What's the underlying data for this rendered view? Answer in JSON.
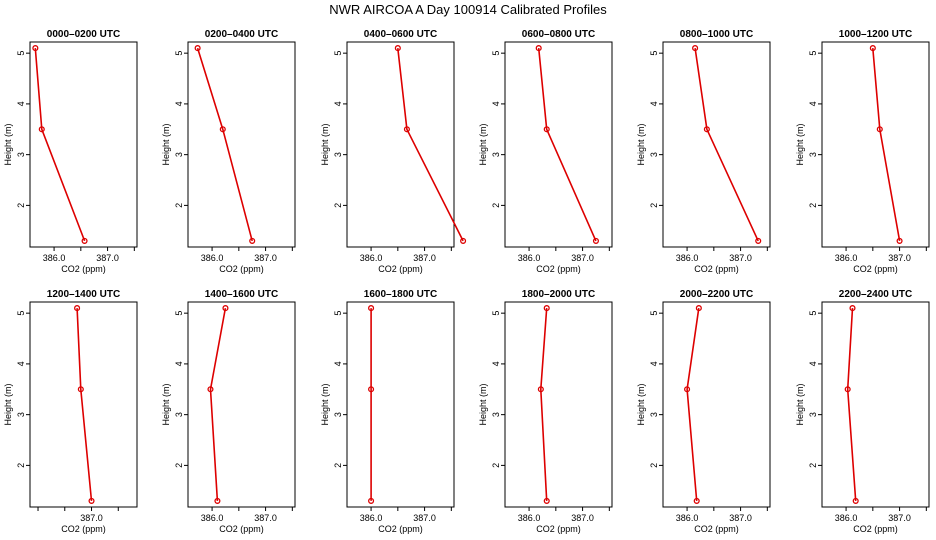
{
  "figure": {
    "title": "NWR AIRCOA A  Day 100914  Calibrated Profiles"
  },
  "colors": {
    "series": "#dd0000",
    "axes": "#000000",
    "background": "#ffffff"
  },
  "chart_data": [
    {
      "type": "line",
      "title": "0000–0200 UTC",
      "xlabel": "CO2 (ppm)",
      "ylabel": "Height (m)",
      "xticks": [
        "386.0",
        "387.0"
      ],
      "yticks": [
        "2",
        "3",
        "4",
        "5"
      ],
      "xlim": [
        385.55,
        387.55
      ],
      "ylim": [
        1.18,
        5.22
      ],
      "series": [
        {
          "x": [
            385.65,
            385.77,
            386.57
          ],
          "y": [
            5.1,
            3.5,
            1.3
          ]
        }
      ]
    },
    {
      "type": "line",
      "title": "0200–0400 UTC",
      "xlabel": "CO2 (ppm)",
      "ylabel": "Height (m)",
      "xticks": [
        "386.0",
        "387.0"
      ],
      "yticks": [
        "2",
        "3",
        "4",
        "5"
      ],
      "xlim": [
        385.55,
        387.55
      ],
      "ylim": [
        1.18,
        5.22
      ],
      "series": [
        {
          "x": [
            385.73,
            386.2,
            386.75
          ],
          "y": [
            5.1,
            3.5,
            1.3
          ]
        }
      ]
    },
    {
      "type": "line",
      "title": "0400–0600 UTC",
      "xlabel": "CO2 (ppm)",
      "ylabel": "Height (m)",
      "xticks": [
        "386.0",
        "387.0"
      ],
      "yticks": [
        "2",
        "3",
        "4",
        "5"
      ],
      "xlim": [
        385.55,
        387.55
      ],
      "ylim": [
        1.18,
        5.22
      ],
      "series": [
        {
          "x": [
            386.5,
            386.67,
            387.72
          ],
          "y": [
            5.1,
            3.5,
            1.3
          ]
        }
      ]
    },
    {
      "type": "line",
      "title": "0600–0800 UTC",
      "xlabel": "CO2 (ppm)",
      "ylabel": "Height (m)",
      "xticks": [
        "386.0",
        "387.0"
      ],
      "yticks": [
        "2",
        "3",
        "4",
        "5"
      ],
      "xlim": [
        385.55,
        387.55
      ],
      "ylim": [
        1.18,
        5.22
      ],
      "series": [
        {
          "x": [
            386.18,
            386.33,
            387.25
          ],
          "y": [
            5.1,
            3.5,
            1.3
          ]
        }
      ]
    },
    {
      "type": "line",
      "title": "0800–1000 UTC",
      "xlabel": "CO2 (ppm)",
      "ylabel": "Height (m)",
      "xticks": [
        "386.0",
        "387.0"
      ],
      "yticks": [
        "2",
        "3",
        "4",
        "5"
      ],
      "xlim": [
        385.55,
        387.55
      ],
      "ylim": [
        1.18,
        5.22
      ],
      "series": [
        {
          "x": [
            386.15,
            386.37,
            387.33
          ],
          "y": [
            5.1,
            3.5,
            1.3
          ]
        }
      ]
    },
    {
      "type": "line",
      "title": "1000–1200 UTC",
      "xlabel": "CO2 (ppm)",
      "ylabel": "Height (m)",
      "xticks": [
        "386.0",
        "387.0"
      ],
      "yticks": [
        "2",
        "3",
        "4",
        "5"
      ],
      "xlim": [
        385.55,
        387.55
      ],
      "ylim": [
        1.18,
        5.22
      ],
      "series": [
        {
          "x": [
            386.5,
            386.63,
            387.0
          ],
          "y": [
            5.1,
            3.5,
            1.3
          ]
        }
      ]
    },
    {
      "type": "line",
      "title": "1200–1400 UTC",
      "xlabel": "CO2 (ppm)",
      "ylabel": "Height (m)",
      "xticks": [
        "387.0"
      ],
      "yticks": [
        "2",
        "3",
        "4",
        "5"
      ],
      "xlim": [
        385.85,
        387.85
      ],
      "ylim": [
        1.18,
        5.22
      ],
      "series": [
        {
          "x": [
            386.73,
            386.8,
            387.0
          ],
          "y": [
            5.1,
            3.5,
            1.3
          ]
        }
      ]
    },
    {
      "type": "line",
      "title": "1400–1600 UTC",
      "xlabel": "CO2 (ppm)",
      "ylabel": "Height (m)",
      "xticks": [
        "386.0",
        "387.0"
      ],
      "yticks": [
        "2",
        "3",
        "4",
        "5"
      ],
      "xlim": [
        385.55,
        387.55
      ],
      "ylim": [
        1.18,
        5.22
      ],
      "series": [
        {
          "x": [
            386.25,
            385.97,
            386.1
          ],
          "y": [
            5.1,
            3.5,
            1.3
          ]
        }
      ]
    },
    {
      "type": "line",
      "title": "1600–1800 UTC",
      "xlabel": "CO2 (ppm)",
      "ylabel": "Height (m)",
      "xticks": [
        "386.0",
        "387.0"
      ],
      "yticks": [
        "2",
        "3",
        "4",
        "5"
      ],
      "xlim": [
        385.55,
        387.55
      ],
      "ylim": [
        1.18,
        5.22
      ],
      "series": [
        {
          "x": [
            386.0,
            386.0,
            386.0
          ],
          "y": [
            5.1,
            3.5,
            1.3
          ]
        }
      ]
    },
    {
      "type": "line",
      "title": "1800–2000 UTC",
      "xlabel": "CO2 (ppm)",
      "ylabel": "Height (m)",
      "xticks": [
        "386.0",
        "387.0"
      ],
      "yticks": [
        "2",
        "3",
        "4",
        "5"
      ],
      "xlim": [
        385.55,
        387.55
      ],
      "ylim": [
        1.18,
        5.22
      ],
      "series": [
        {
          "x": [
            386.33,
            386.22,
            386.33
          ],
          "y": [
            5.1,
            3.5,
            1.3
          ]
        }
      ]
    },
    {
      "type": "line",
      "title": "2000–2200 UTC",
      "xlabel": "CO2 (ppm)",
      "ylabel": "Height (m)",
      "xticks": [
        "386.0",
        "387.0"
      ],
      "yticks": [
        "2",
        "3",
        "4",
        "5"
      ],
      "xlim": [
        385.55,
        387.55
      ],
      "ylim": [
        1.18,
        5.22
      ],
      "series": [
        {
          "x": [
            386.22,
            386.0,
            386.18
          ],
          "y": [
            5.1,
            3.5,
            1.3
          ]
        }
      ]
    },
    {
      "type": "line",
      "title": "2200–2400 UTC",
      "xlabel": "CO2 (ppm)",
      "ylabel": "Height (m)",
      "xticks": [
        "386.0",
        "387.0"
      ],
      "yticks": [
        "2",
        "3",
        "4",
        "5"
      ],
      "xlim": [
        385.55,
        387.55
      ],
      "ylim": [
        1.18,
        5.22
      ],
      "series": [
        {
          "x": [
            386.12,
            386.03,
            386.18
          ],
          "y": [
            5.1,
            3.5,
            1.3
          ]
        }
      ]
    }
  ]
}
